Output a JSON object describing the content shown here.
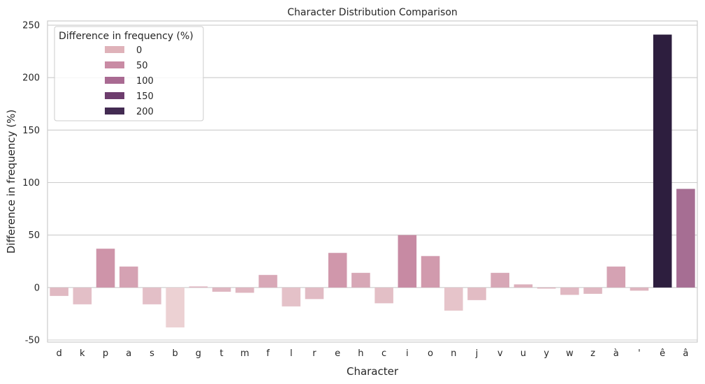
{
  "chart_data": {
    "type": "bar",
    "title": "Character Distribution Comparison",
    "xlabel": "Character",
    "ylabel": "Difference in frequency (%)",
    "ylim": [
      -52,
      254
    ],
    "yticks": [
      -50,
      0,
      50,
      100,
      150,
      200,
      250
    ],
    "grid": true,
    "categories": [
      "d",
      "k",
      "p",
      "a",
      "s",
      "b",
      "g",
      "t",
      "m",
      "f",
      "l",
      "r",
      "e",
      "h",
      "c",
      "i",
      "o",
      "n",
      "j",
      "v",
      "u",
      "y",
      "w",
      "z",
      "à",
      "'",
      "ê",
      "â"
    ],
    "values": [
      -8,
      -16,
      37,
      20,
      -16,
      -38,
      1,
      -4,
      -5,
      12,
      -18,
      -11,
      33,
      14,
      -15,
      50,
      30,
      -22,
      -12,
      14,
      3,
      -1,
      -7,
      -6,
      20,
      -3,
      241,
      94
    ],
    "legend": {
      "title": "Difference in frequency (%)",
      "placement": "upper-left",
      "entries": [
        {
          "label": "0",
          "color": "#dfb2b9"
        },
        {
          "label": "50",
          "color": "#c98ba4"
        },
        {
          "label": "100",
          "color": "#a96a92"
        },
        {
          "label": "150",
          "color": "#6d3d6d"
        },
        {
          "label": "200",
          "color": "#432b52"
        }
      ]
    },
    "palette_min": -40,
    "palette_max": 241,
    "colors": {
      "low": "#edd3d4",
      "mid": "#cb8ea5",
      "high": "#a16a91",
      "darkest": "#2d1e3e",
      "grid": "#cccccc",
      "frame": "#cccccc"
    }
  }
}
